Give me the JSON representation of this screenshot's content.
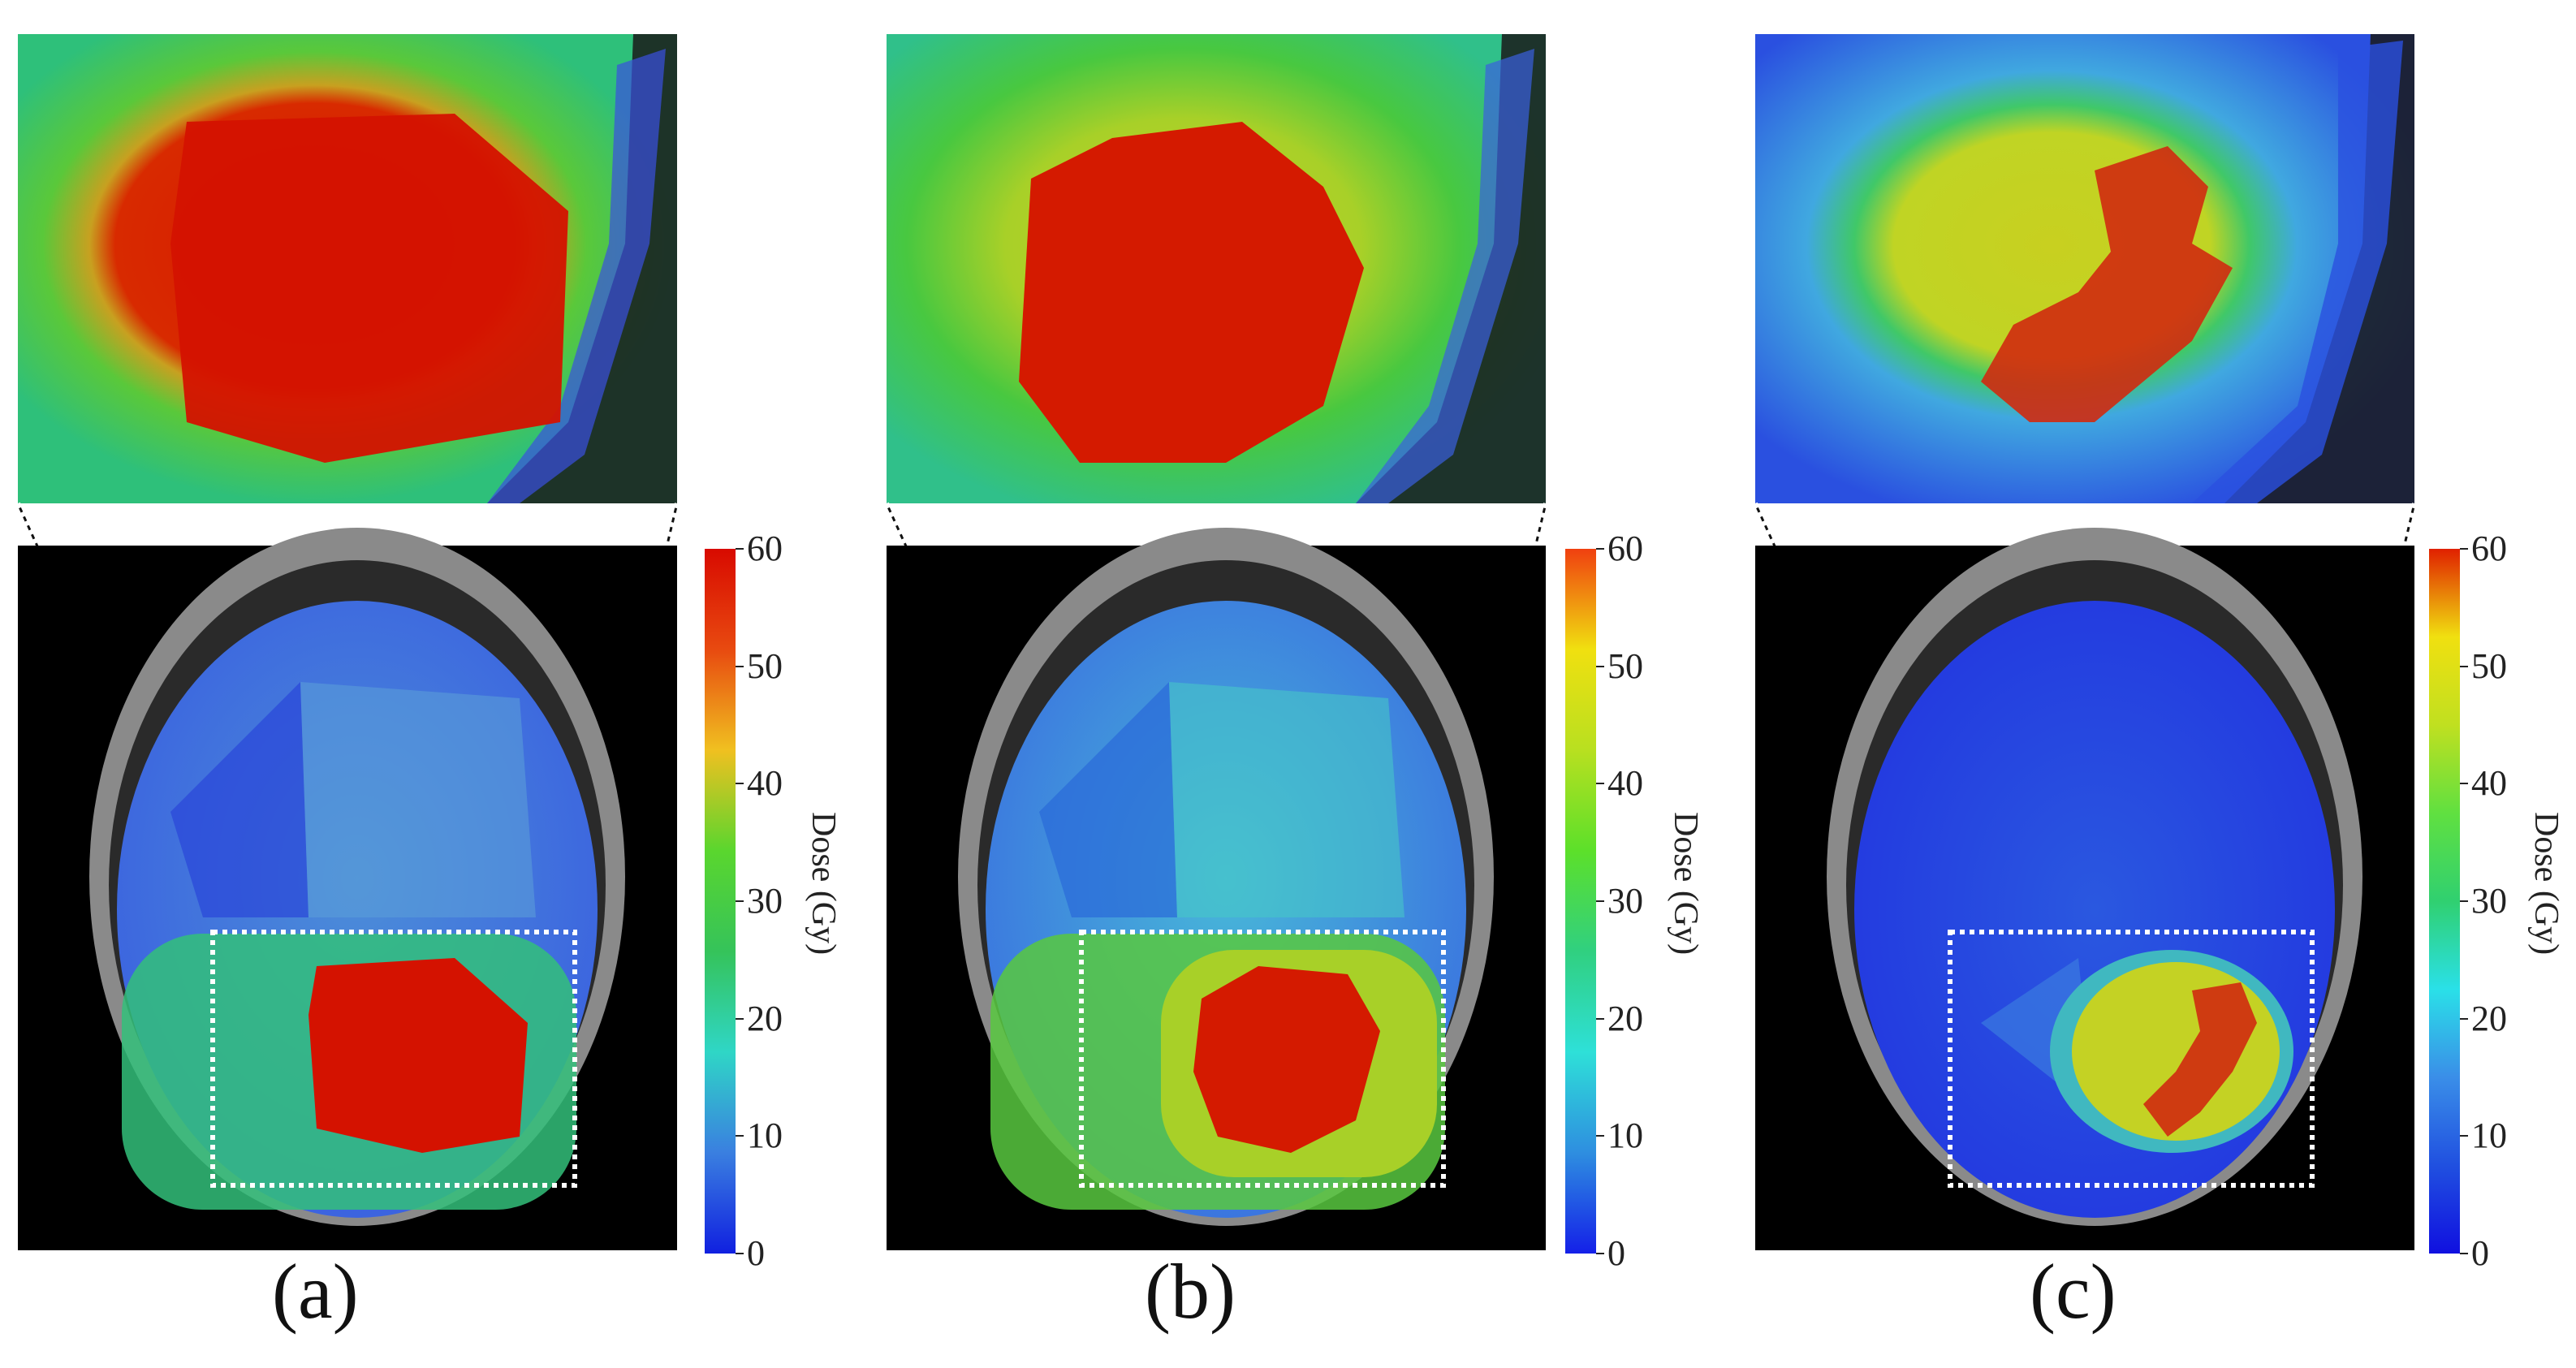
{
  "figure": {
    "panels": [
      {
        "id": "a",
        "caption": "(a)",
        "colorbar": {
          "label": "Dose (Gy)",
          "ticks": [
            "0",
            "10",
            "20",
            "30",
            "40",
            "50",
            "60"
          ],
          "colors": [
            "#1020e0",
            "#3a7fe0",
            "#2fd6c6",
            "#35c35a",
            "#5ad62e",
            "#f0c020",
            "#e84a10",
            "#d80a00"
          ]
        }
      },
      {
        "id": "b",
        "caption": "(b)",
        "colorbar": {
          "label": "Dose (Gy)",
          "ticks": [
            "0",
            "10",
            "20",
            "30",
            "40",
            "50",
            "60"
          ],
          "colors": [
            "#1420e8",
            "#2e8ee0",
            "#2ee0d8",
            "#30d080",
            "#5ce02a",
            "#b8e020",
            "#f0e010",
            "#f04010"
          ]
        }
      },
      {
        "id": "c",
        "caption": "(c)",
        "colorbar": {
          "label": "Dose (Gy)",
          "ticks": [
            "0",
            "10",
            "20",
            "30",
            "40",
            "50",
            "60"
          ],
          "colors": [
            "#1010e0",
            "#2050e0",
            "#3a8ee8",
            "#2ae0e8",
            "#30d070",
            "#60e040",
            "#c0e020",
            "#f0e010",
            "#e02000"
          ]
        }
      }
    ]
  }
}
